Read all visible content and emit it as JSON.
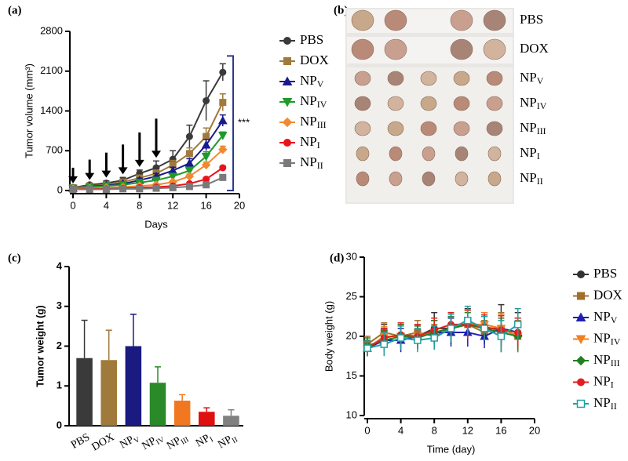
{
  "chart_data": [
    {
      "type": "line",
      "panel": "(a)",
      "xlabel": "Days",
      "ylabel": "Tumor volume (mm³)",
      "x": [
        0,
        2,
        4,
        6,
        8,
        10,
        12,
        14,
        16,
        18
      ],
      "xlim": [
        0,
        20
      ],
      "xticks": [
        0,
        4,
        8,
        12,
        16,
        20
      ],
      "ylim": [
        0,
        2800
      ],
      "yticks": [
        0,
        700,
        1400,
        2100,
        2800
      ],
      "legend": "right",
      "annotations": {
        "arrows_x": [
          0,
          2,
          4,
          6,
          8,
          10
        ],
        "significance": "***"
      },
      "series": [
        {
          "name": "PBS",
          "color": "#3a3a3a",
          "marker": "circle",
          "values": [
            50,
            100,
            130,
            180,
            300,
            400,
            550,
            950,
            1580,
            2080
          ],
          "errors": [
            20,
            30,
            40,
            50,
            60,
            120,
            150,
            200,
            350,
            150
          ]
        },
        {
          "name": "DOX",
          "color": "#a07a3a",
          "marker": "square",
          "values": [
            50,
            80,
            100,
            150,
            220,
            300,
            450,
            650,
            950,
            1550
          ],
          "errors": [
            10,
            20,
            30,
            40,
            50,
            60,
            80,
            100,
            150,
            150
          ]
        },
        {
          "name": "NPV",
          "color": "#1a1a90",
          "marker": "triangle-up",
          "values": [
            40,
            70,
            90,
            120,
            180,
            250,
            350,
            480,
            800,
            1230
          ],
          "errors": [
            10,
            20,
            20,
            30,
            40,
            50,
            60,
            80,
            100,
            100
          ]
        },
        {
          "name": "NPIV",
          "color": "#1f9a2a",
          "marker": "triangle-down",
          "values": [
            40,
            60,
            80,
            100,
            140,
            180,
            250,
            350,
            600,
            970
          ],
          "errors": [
            10,
            10,
            20,
            20,
            30,
            40,
            50,
            60,
            80,
            60
          ]
        },
        {
          "name": "NPIII",
          "color": "#f08a30",
          "marker": "diamond",
          "values": [
            30,
            40,
            50,
            60,
            80,
            100,
            150,
            250,
            450,
            720
          ],
          "errors": [
            10,
            10,
            10,
            10,
            20,
            20,
            30,
            40,
            50,
            60
          ]
        },
        {
          "name": "NPI",
          "color": "#e8141c",
          "marker": "circle",
          "values": [
            20,
            30,
            30,
            40,
            50,
            60,
            80,
            120,
            200,
            400
          ],
          "errors": [
            5,
            5,
            10,
            10,
            10,
            10,
            20,
            20,
            30,
            30
          ]
        },
        {
          "name": "NPII",
          "color": "#7a7a7a",
          "marker": "square",
          "values": [
            20,
            20,
            20,
            30,
            30,
            40,
            50,
            70,
            100,
            230
          ],
          "errors": [
            5,
            5,
            5,
            5,
            10,
            10,
            10,
            10,
            20,
            30
          ]
        }
      ]
    },
    {
      "type": "bar",
      "panel": "(c)",
      "ylabel": "Tumor weight (g)",
      "categories": [
        "PBS",
        "DOX",
        "NPV",
        "NPIV",
        "NPIII",
        "NPI",
        "NPII"
      ],
      "values": [
        1.7,
        1.65,
        2.0,
        1.08,
        0.63,
        0.35,
        0.25
      ],
      "errors": [
        0.95,
        0.75,
        0.8,
        0.4,
        0.15,
        0.1,
        0.15
      ],
      "colors": [
        "#3a3a3a",
        "#a07a3a",
        "#1a1a80",
        "#2a8a2a",
        "#f07820",
        "#e01010",
        "#808080"
      ],
      "ylim": [
        0,
        4
      ],
      "yticks": [
        0,
        1,
        2,
        3,
        4
      ]
    },
    {
      "type": "line",
      "panel": "(d)",
      "xlabel": "Time (day)",
      "ylabel": "Body weight (g)",
      "x": [
        0,
        2,
        4,
        6,
        8,
        10,
        12,
        14,
        16,
        18
      ],
      "xlim": [
        0,
        20
      ],
      "xticks": [
        0,
        4,
        8,
        12,
        16,
        20
      ],
      "ylim": [
        10,
        30
      ],
      "yticks": [
        10,
        15,
        20,
        25,
        30
      ],
      "legend": "right",
      "series": [
        {
          "name": "PBS",
          "color": "#333333",
          "marker": "circle",
          "values": [
            18.5,
            20.0,
            20.0,
            20.0,
            21.0,
            21.0,
            22.0,
            21.0,
            21.0,
            20.5
          ],
          "errors": [
            1.0,
            1.5,
            1.5,
            1.5,
            2.0,
            2.0,
            1.5,
            2.0,
            3.0,
            2.5
          ]
        },
        {
          "name": "DOX",
          "color": "#a0702a",
          "marker": "square",
          "values": [
            19.0,
            20.5,
            20.0,
            20.5,
            20.0,
            21.0,
            21.5,
            20.5,
            21.0,
            20.0
          ],
          "errors": [
            1.0,
            1.2,
            1.5,
            1.5,
            1.5,
            1.8,
            1.8,
            1.5,
            2.0,
            2.0
          ]
        },
        {
          "name": "NPV",
          "color": "#2020b0",
          "marker": "triangle-up",
          "values": [
            18.5,
            19.5,
            19.5,
            20.0,
            20.5,
            20.5,
            20.5,
            20.0,
            21.0,
            20.5
          ],
          "errors": [
            1.0,
            1.5,
            1.5,
            1.5,
            1.5,
            1.8,
            1.8,
            1.5,
            1.8,
            1.8
          ]
        },
        {
          "name": "NPIV",
          "color": "#f08020",
          "marker": "triangle-down",
          "values": [
            18.5,
            20.0,
            20.0,
            20.0,
            20.5,
            21.0,
            21.5,
            21.5,
            21.0,
            20.0
          ],
          "errors": [
            1.0,
            1.2,
            1.5,
            1.5,
            1.5,
            1.5,
            1.8,
            1.5,
            1.8,
            1.8
          ]
        },
        {
          "name": "NPIII",
          "color": "#208020",
          "marker": "diamond",
          "values": [
            18.8,
            19.5,
            20.0,
            19.8,
            20.5,
            21.0,
            21.5,
            21.0,
            20.5,
            20.0
          ],
          "errors": [
            1.0,
            1.2,
            1.5,
            1.5,
            1.5,
            1.5,
            1.5,
            1.5,
            1.8,
            1.8
          ]
        },
        {
          "name": "NPI",
          "color": "#e02020",
          "marker": "circle",
          "values": [
            18.5,
            19.8,
            20.2,
            20.0,
            20.8,
            21.5,
            21.5,
            21.2,
            20.8,
            20.5
          ],
          "errors": [
            1.0,
            1.2,
            1.5,
            1.5,
            1.5,
            1.5,
            1.8,
            1.5,
            1.8,
            1.8
          ]
        },
        {
          "name": "NPII",
          "color": "#20a0a0",
          "marker": "open-square",
          "values": [
            18.5,
            19.0,
            19.8,
            19.5,
            19.8,
            21.0,
            22.0,
            21.0,
            20.0,
            21.5
          ],
          "errors": [
            1.0,
            1.5,
            1.5,
            1.5,
            1.5,
            1.8,
            1.8,
            1.5,
            2.0,
            2.0
          ]
        }
      ]
    }
  ],
  "photo": {
    "panel": "(b)",
    "groups": [
      "PBS",
      "DOX",
      "NPV",
      "NPIV",
      "NPIII",
      "NPI",
      "NPII"
    ]
  }
}
